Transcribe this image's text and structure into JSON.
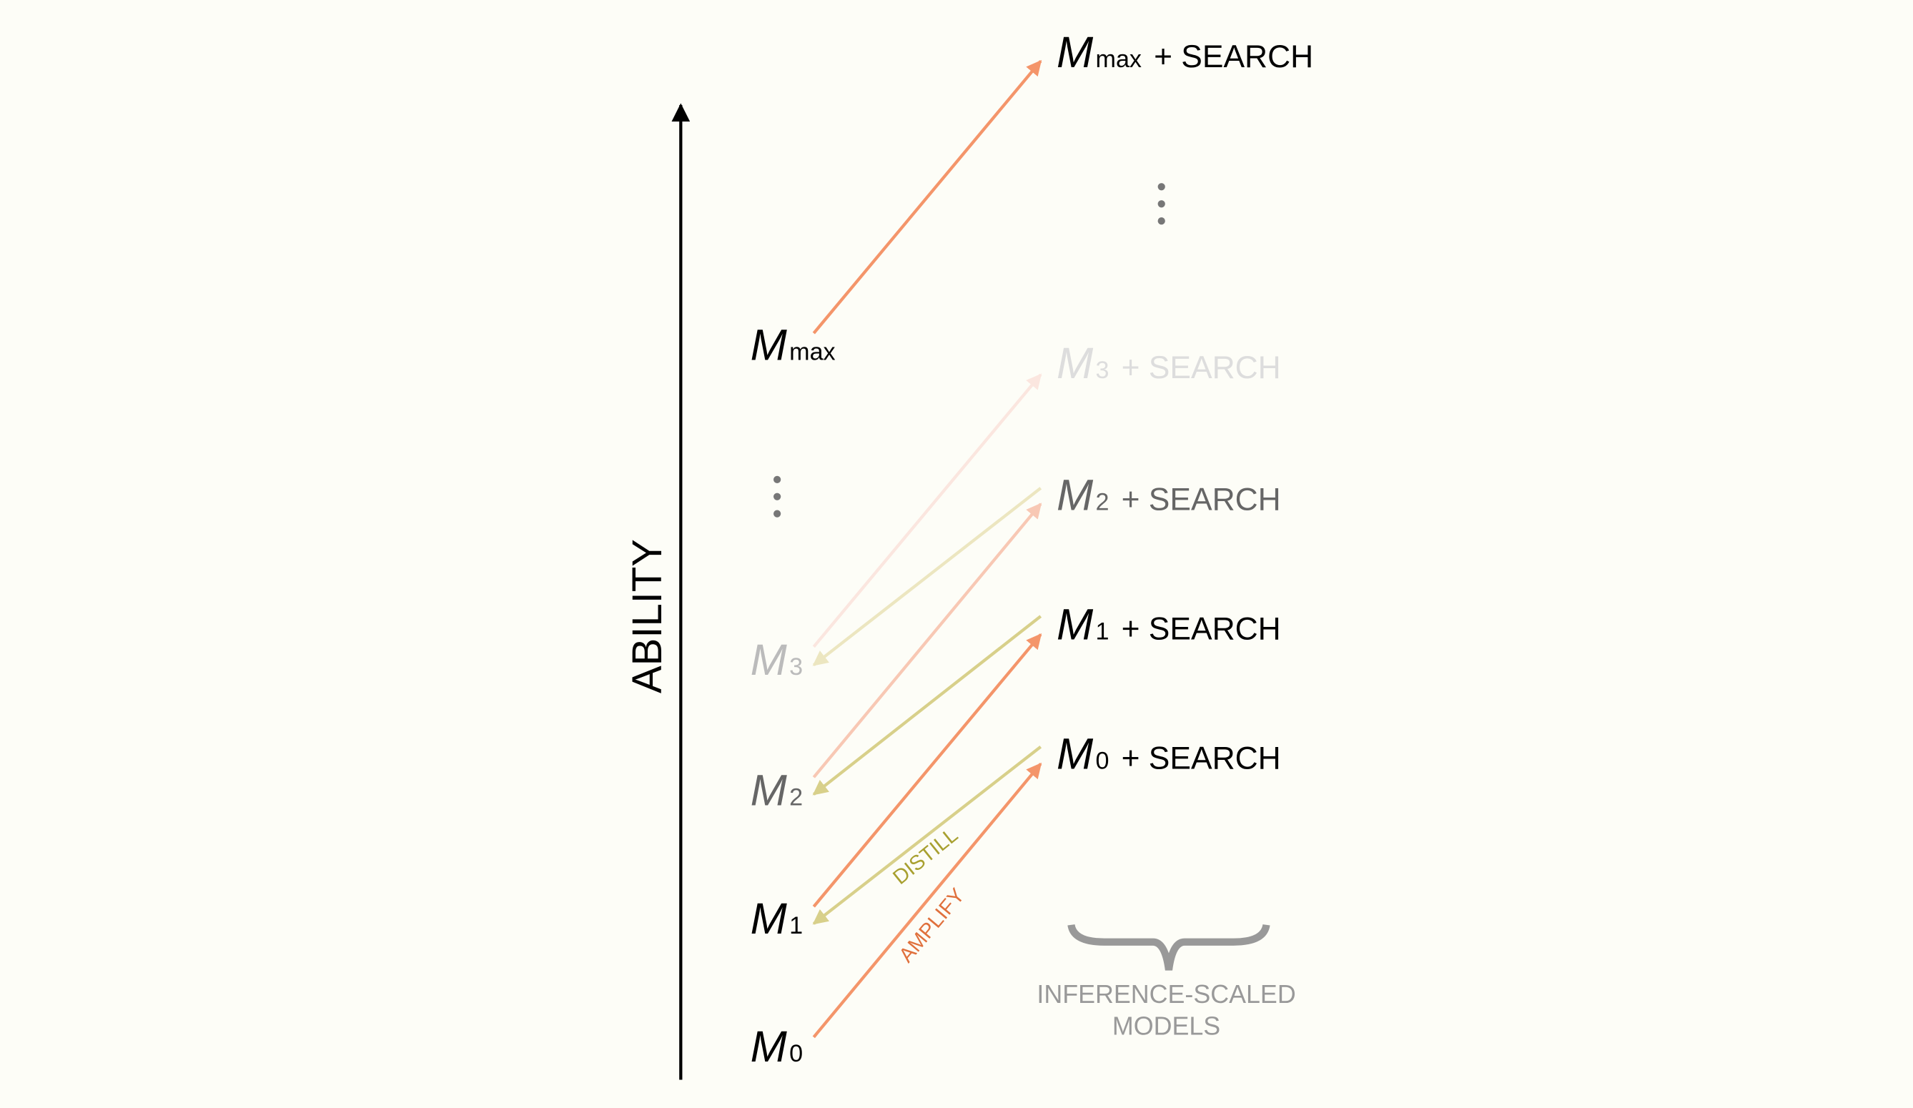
{
  "axis_label": "ABILITY",
  "left_nodes": [
    {
      "letter": "M",
      "sub": "0"
    },
    {
      "letter": "M",
      "sub": "1"
    },
    {
      "letter": "M",
      "sub": "2"
    },
    {
      "letter": "M",
      "sub": "3"
    },
    {
      "letter": "M",
      "sub": "max"
    }
  ],
  "right_nodes": [
    {
      "letter": "M",
      "sub": "0",
      "suffix": "+ SEARCH"
    },
    {
      "letter": "M",
      "sub": "1",
      "suffix": "+ SEARCH"
    },
    {
      "letter": "M",
      "sub": "2",
      "suffix": "+ SEARCH"
    },
    {
      "letter": "M",
      "sub": "3",
      "suffix": "+ SEARCH"
    },
    {
      "letter": "M",
      "sub": "max",
      "suffix": "+ SEARCH"
    }
  ],
  "edge_labels": {
    "distill": "DISTILL",
    "amplify": "AMPLIFY"
  },
  "brace_label": [
    "INFERENCE-SCALED",
    "MODELS"
  ]
}
